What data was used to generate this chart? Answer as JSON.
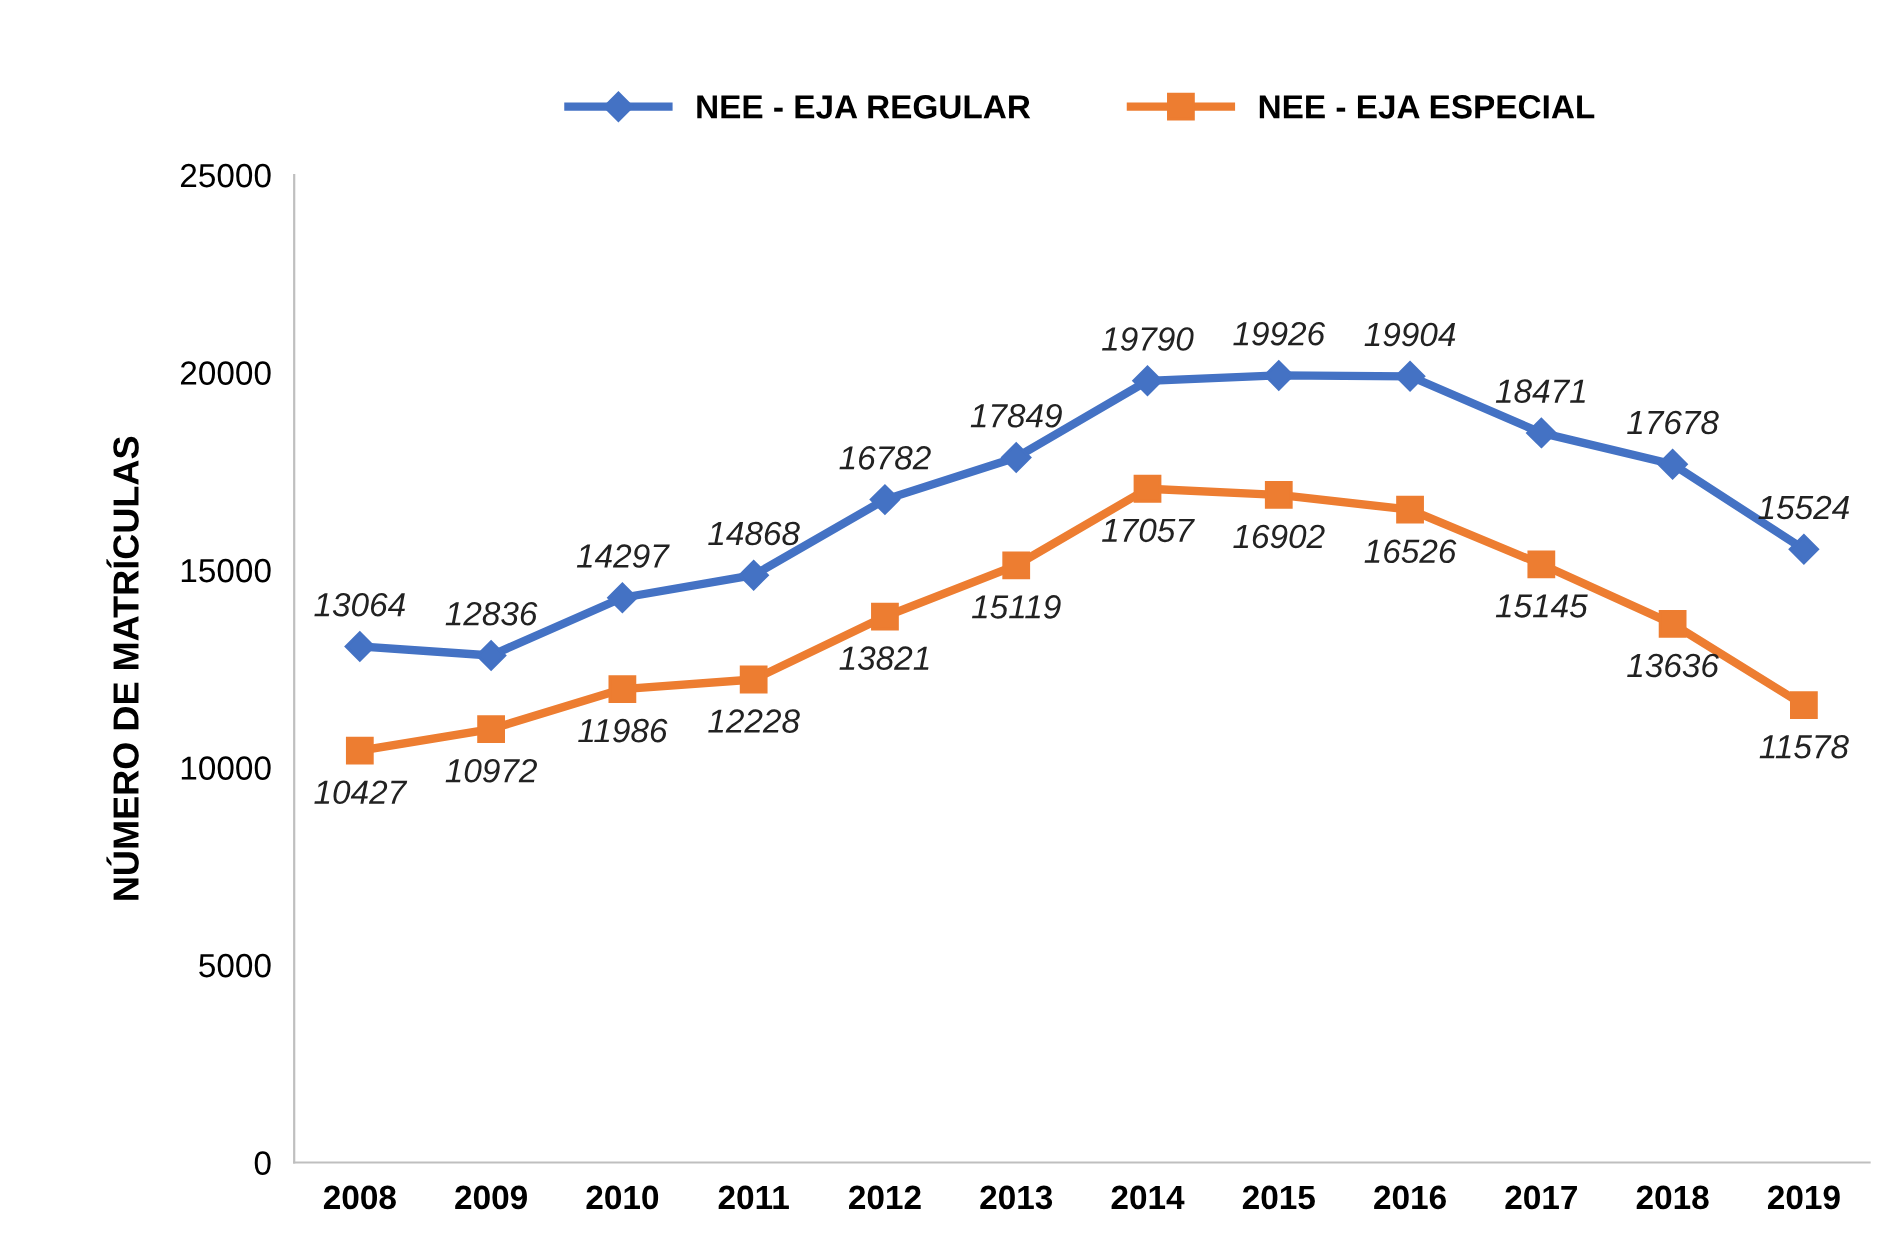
{
  "chart_data": {
    "type": "line",
    "ylabel": "NÚMERO DE MATRÍCULAS",
    "categories": [
      "2008",
      "2009",
      "2010",
      "2011",
      "2012",
      "2013",
      "2014",
      "2015",
      "2016",
      "2017",
      "2018",
      "2019"
    ],
    "series": [
      {
        "name": "NEE - EJA REGULAR",
        "color": "#4472c4",
        "marker": "diamond",
        "values": [
          13064,
          12836,
          14297,
          14868,
          16782,
          17849,
          19790,
          19926,
          19904,
          18471,
          17678,
          15524
        ]
      },
      {
        "name": "NEE - EJA ESPECIAL",
        "color": "#ed7d31",
        "marker": "square",
        "values": [
          10427,
          10972,
          11986,
          12228,
          13821,
          15119,
          17057,
          16902,
          16526,
          15145,
          13636,
          11578
        ]
      }
    ],
    "ylim": [
      0,
      25000
    ],
    "yticks": [
      0,
      5000,
      10000,
      15000,
      20000,
      25000
    ],
    "data_labels": true,
    "grid": false,
    "legend": "top",
    "line_style": "solid"
  }
}
